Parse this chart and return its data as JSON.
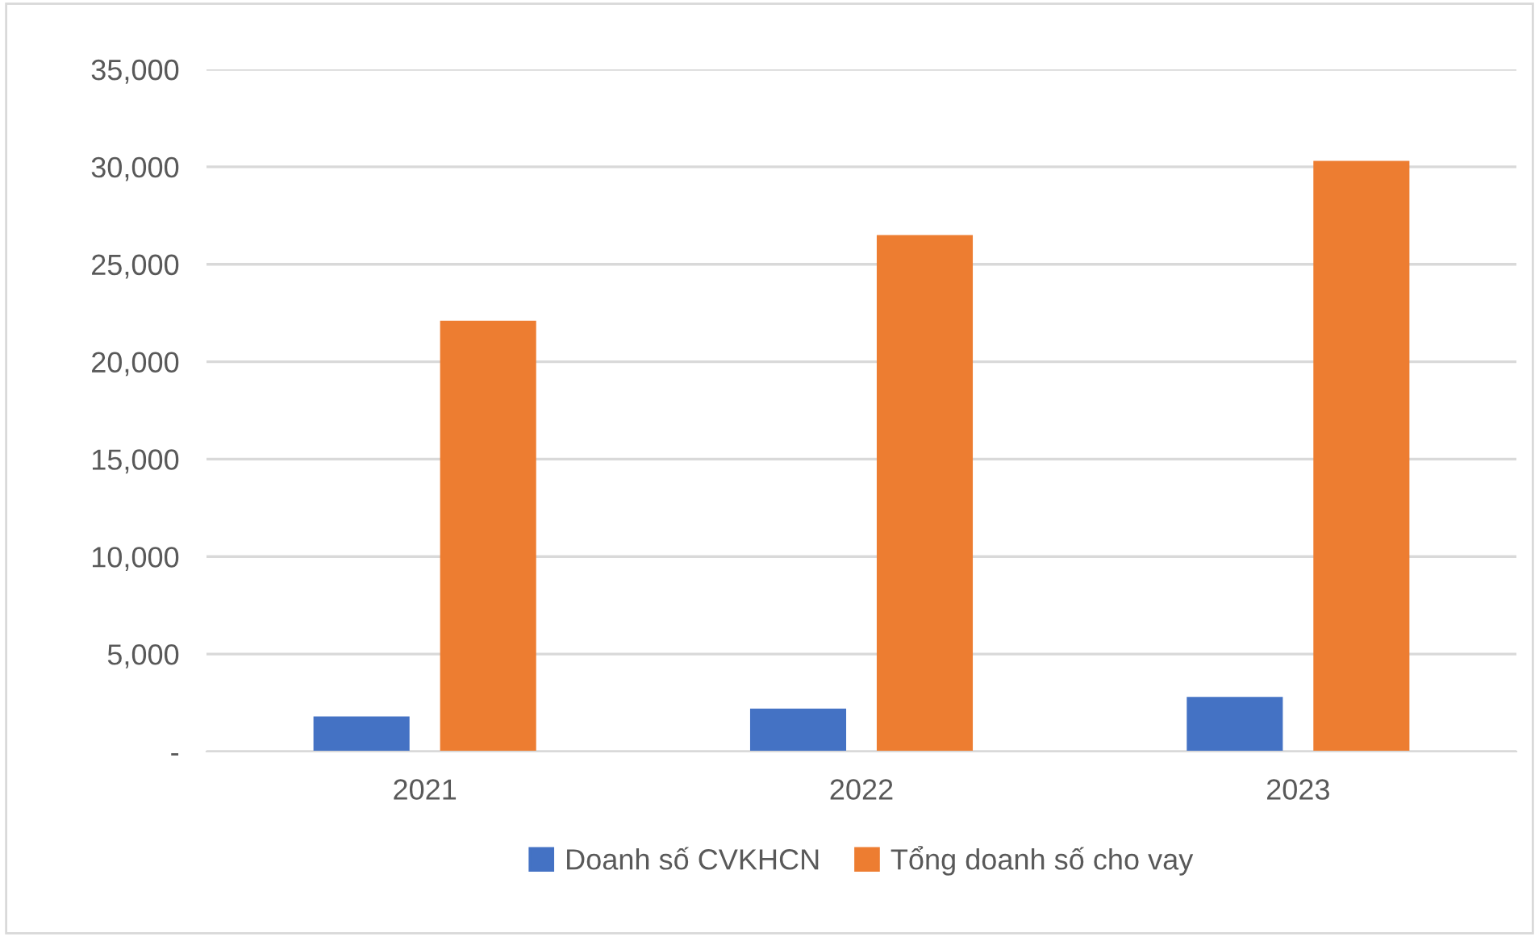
{
  "chart_data": {
    "type": "bar",
    "categories": [
      "2021",
      "2022",
      "2023"
    ],
    "series": [
      {
        "name": "Doanh số CVKHCN",
        "color": "#4472c4",
        "values": [
          1800,
          2200,
          2800
        ]
      },
      {
        "name": "Tổng doanh số cho vay",
        "color": "#ed7d31",
        "values": [
          22100,
          26500,
          30300
        ]
      }
    ],
    "ylim": [
      0,
      35000
    ],
    "yticks": [
      {
        "value": 0,
        "label": "-"
      },
      {
        "value": 5000,
        "label": "5,000"
      },
      {
        "value": 10000,
        "label": "10,000"
      },
      {
        "value": 15000,
        "label": "15,000"
      },
      {
        "value": 20000,
        "label": "20,000"
      },
      {
        "value": 25000,
        "label": "25,000"
      },
      {
        "value": 30000,
        "label": "30,000"
      },
      {
        "value": 35000,
        "label": "35,000"
      }
    ],
    "grid": "y",
    "legend": "bottom"
  }
}
